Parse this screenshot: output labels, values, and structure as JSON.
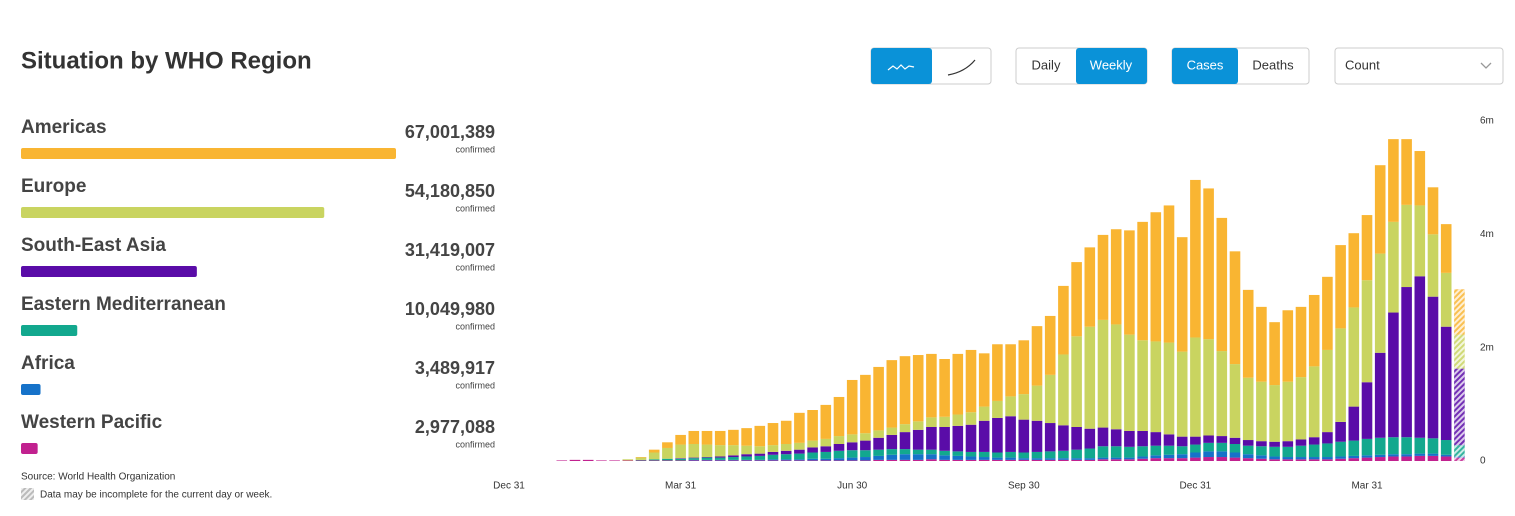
{
  "title": "Situation by WHO Region",
  "controls": {
    "daily": "Daily",
    "weekly": "Weekly",
    "cases": "Cases",
    "deaths": "Deaths",
    "measure": "Count"
  },
  "source": "Source: World Health Organization",
  "note": "Data may be incomplete for the current day or week.",
  "chart_data": [
    {
      "type": "hbar",
      "categories": [
        "Americas",
        "Europe",
        "South-East Asia",
        "Eastern Mediterranean",
        "Africa",
        "Western Pacific"
      ],
      "values": [
        67001389,
        54180850,
        31419007,
        10049980,
        3489917,
        2977088
      ],
      "value_labels": [
        "67,001,389",
        "54,180,850",
        "31,419,007",
        "10,049,980",
        "3,489,917",
        "2,977,088"
      ],
      "value_caption": "confirmed",
      "colors": [
        "#f9b532",
        "#c9d460",
        "#5a0ca8",
        "#12a88e",
        "#1672c9",
        "#c1218f"
      ]
    },
    {
      "type": "stacked_bar",
      "categories": [
        "Dec 31",
        null,
        null,
        null,
        null,
        null,
        null,
        null,
        null,
        null,
        null,
        null,
        null,
        "Mar 31",
        null,
        null,
        null,
        null,
        null,
        null,
        null,
        null,
        null,
        null,
        null,
        null,
        "Jun 30",
        null,
        null,
        null,
        null,
        null,
        null,
        null,
        null,
        null,
        null,
        null,
        null,
        "Sep 30",
        null,
        null,
        null,
        null,
        null,
        null,
        null,
        null,
        null,
        null,
        null,
        null,
        "Dec 31",
        null,
        null,
        null,
        null,
        null,
        null,
        null,
        null,
        null,
        null,
        null,
        null,
        "Mar 31",
        null,
        null,
        null,
        null,
        null,
        null,
        null
      ],
      "ylim": [
        0,
        6
      ],
      "yticks": [
        {
          "value": 0,
          "label": "0"
        },
        {
          "value": 2,
          "label": "2m"
        },
        {
          "value": 4,
          "label": "4m"
        },
        {
          "value": 6,
          "label": "6m"
        }
      ],
      "series": [
        {
          "name": "Western Pacific",
          "color": "#c1218f",
          "values": [
            0,
            0,
            0,
            0,
            0.01,
            0.02,
            0.02,
            0.01,
            0.01,
            0.01,
            0.01,
            0.01,
            0.01,
            0.01,
            0.01,
            0.01,
            0.01,
            0.01,
            0.01,
            0.01,
            0.01,
            0.01,
            0.01,
            0.01,
            0.01,
            0.01,
            0.01,
            0.01,
            0.02,
            0.02,
            0.02,
            0.02,
            0.03,
            0.02,
            0.02,
            0.02,
            0.02,
            0.02,
            0.02,
            0.02,
            0.02,
            0.02,
            0.02,
            0.02,
            0.02,
            0.03,
            0.03,
            0.03,
            0.04,
            0.05,
            0.05,
            0.05,
            0.06,
            0.07,
            0.07,
            0.06,
            0.05,
            0.04,
            0.03,
            0.03,
            0.03,
            0.03,
            0.03,
            0.04,
            0.05,
            0.06,
            0.07,
            0.08,
            0.08,
            0.09,
            0.09,
            0.08,
            0.06
          ]
        },
        {
          "name": "Africa",
          "color": "#1672c9",
          "values": [
            0,
            0,
            0,
            0,
            0,
            0,
            0,
            0,
            0,
            0,
            0,
            0,
            0,
            0,
            0.01,
            0.01,
            0.01,
            0.01,
            0.01,
            0.01,
            0.02,
            0.02,
            0.02,
            0.03,
            0.03,
            0.04,
            0.05,
            0.06,
            0.07,
            0.09,
            0.1,
            0.1,
            0.09,
            0.08,
            0.07,
            0.06,
            0.05,
            0.04,
            0.04,
            0.03,
            0.03,
            0.03,
            0.03,
            0.03,
            0.03,
            0.03,
            0.03,
            0.03,
            0.04,
            0.05,
            0.06,
            0.07,
            0.09,
            0.1,
            0.1,
            0.09,
            0.07,
            0.06,
            0.05,
            0.04,
            0.04,
            0.04,
            0.04,
            0.04,
            0.04,
            0.04,
            0.04,
            0.04,
            0.04,
            0.04,
            0.04,
            0.03,
            0.02
          ]
        },
        {
          "name": "Eastern Mediterranean",
          "color": "#12a88e",
          "values": [
            0,
            0,
            0,
            0,
            0,
            0,
            0,
            0,
            0,
            0,
            0.01,
            0.02,
            0.03,
            0.03,
            0.03,
            0.04,
            0.04,
            0.05,
            0.06,
            0.07,
            0.08,
            0.09,
            0.1,
            0.11,
            0.12,
            0.13,
            0.13,
            0.12,
            0.11,
            0.1,
            0.09,
            0.08,
            0.08,
            0.08,
            0.08,
            0.08,
            0.09,
            0.09,
            0.1,
            0.1,
            0.11,
            0.12,
            0.13,
            0.15,
            0.17,
            0.2,
            0.2,
            0.19,
            0.18,
            0.17,
            0.16,
            0.14,
            0.14,
            0.15,
            0.15,
            0.15,
            0.15,
            0.16,
            0.17,
            0.18,
            0.2,
            0.22,
            0.24,
            0.26,
            0.27,
            0.29,
            0.3,
            0.3,
            0.3,
            0.28,
            0.27,
            0.26,
            0.2
          ]
        },
        {
          "name": "South-East Asia",
          "color": "#5a0ca8",
          "values": [
            0,
            0,
            0,
            0,
            0,
            0,
            0,
            0,
            0,
            0,
            0,
            0,
            0,
            0.01,
            0.01,
            0.01,
            0.02,
            0.03,
            0.04,
            0.04,
            0.05,
            0.06,
            0.07,
            0.09,
            0.1,
            0.12,
            0.14,
            0.17,
            0.21,
            0.25,
            0.3,
            0.35,
            0.4,
            0.42,
            0.45,
            0.48,
            0.55,
            0.61,
            0.63,
            0.58,
            0.55,
            0.5,
            0.45,
            0.4,
            0.35,
            0.33,
            0.3,
            0.28,
            0.27,
            0.24,
            0.2,
            0.17,
            0.14,
            0.13,
            0.12,
            0.11,
            0.1,
            0.09,
            0.09,
            0.1,
            0.11,
            0.13,
            0.2,
            0.35,
            0.6,
            1.0,
            1.5,
            2.2,
            2.65,
            2.85,
            2.5,
            2.0,
            1.35
          ]
        },
        {
          "name": "Europe",
          "color": "#c9d460",
          "values": [
            0,
            0,
            0,
            0,
            0,
            0,
            0,
            0,
            0,
            0.02,
            0.04,
            0.12,
            0.19,
            0.24,
            0.24,
            0.22,
            0.2,
            0.18,
            0.15,
            0.13,
            0.12,
            0.12,
            0.12,
            0.12,
            0.13,
            0.14,
            0.14,
            0.13,
            0.13,
            0.13,
            0.14,
            0.15,
            0.17,
            0.18,
            0.2,
            0.22,
            0.25,
            0.3,
            0.35,
            0.45,
            0.62,
            0.85,
            1.25,
            1.6,
            1.8,
            1.9,
            1.85,
            1.7,
            1.6,
            1.6,
            1.62,
            1.5,
            1.75,
            1.7,
            1.5,
            1.3,
            1.1,
            1.05,
            1.0,
            1.05,
            1.1,
            1.25,
            1.45,
            1.65,
            1.75,
            1.8,
            1.75,
            1.6,
            1.45,
            1.25,
            1.1,
            0.95,
            0.6
          ]
        },
        {
          "name": "Americas",
          "color": "#f9b532",
          "values": [
            0,
            0,
            0,
            0,
            0,
            0,
            0,
            0,
            0,
            0,
            0.01,
            0.05,
            0.1,
            0.17,
            0.23,
            0.24,
            0.25,
            0.27,
            0.31,
            0.36,
            0.39,
            0.41,
            0.53,
            0.54,
            0.6,
            0.69,
            0.96,
            1.03,
            1.12,
            1.19,
            1.2,
            1.17,
            1.12,
            1.02,
            1.07,
            1.1,
            0.94,
            1.0,
            0.92,
            0.95,
            1.05,
            1.04,
            1.21,
            1.31,
            1.4,
            1.5,
            1.68,
            1.84,
            2.09,
            2.28,
            2.42,
            2.02,
            2.78,
            2.66,
            2.35,
            1.99,
            1.55,
            1.32,
            1.11,
            1.26,
            1.24,
            1.26,
            1.29,
            1.47,
            1.31,
            1.15,
            1.56,
            1.46,
            1.16,
            0.96,
            0.83,
            0.86,
            0.8
          ]
        }
      ]
    }
  ]
}
